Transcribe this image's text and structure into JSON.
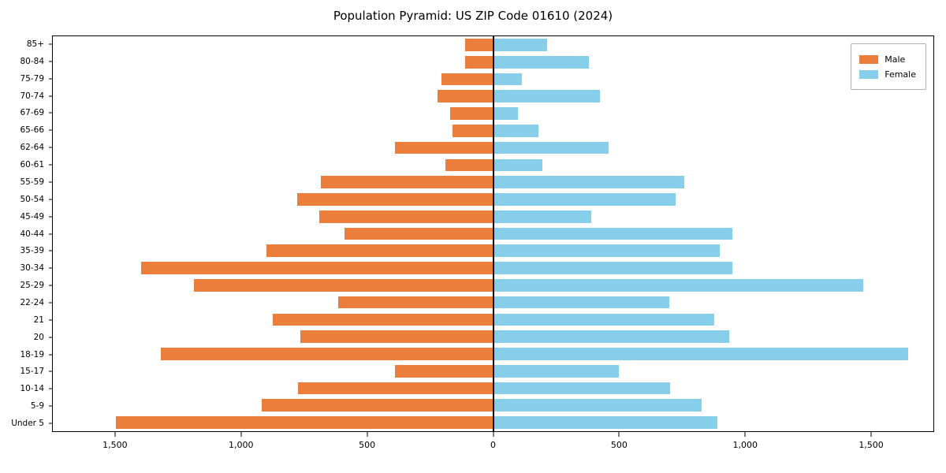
{
  "chart_data": {
    "type": "bar",
    "variant": "population-pyramid",
    "title": "Population Pyramid: US ZIP Code 01610 (2024)",
    "grid": false,
    "categories_top_to_bottom": [
      "85+",
      "80-84",
      "75-79",
      "70-74",
      "67-69",
      "65-66",
      "62-64",
      "60-61",
      "55-59",
      "50-54",
      "45-49",
      "40-44",
      "35-39",
      "30-34",
      "25-29",
      "22-24",
      "21",
      "20",
      "18-19",
      "15-17",
      "10-14",
      "5-9",
      "Under 5"
    ],
    "series": [
      {
        "name": "Male",
        "side": "left",
        "color": "#EC7E3B",
        "values": [
          110,
          110,
          205,
          220,
          170,
          160,
          390,
          190,
          685,
          780,
          690,
          590,
          900,
          1400,
          1190,
          615,
          875,
          765,
          1320,
          390,
          775,
          920,
          1500
        ]
      },
      {
        "name": "Female",
        "side": "right",
        "color": "#87CEEB",
        "values": [
          215,
          380,
          115,
          425,
          100,
          180,
          460,
          195,
          760,
          725,
          390,
          950,
          900,
          950,
          1470,
          700,
          880,
          940,
          1650,
          500,
          705,
          830,
          890
        ]
      }
    ],
    "x_axis": {
      "tick_values": [
        1500,
        1000,
        500,
        0,
        500,
        1000,
        1500
      ],
      "tick_labels": [
        "1,500",
        "1,000",
        "500",
        "0",
        "500",
        "1,000",
        "1,500"
      ],
      "max_per_side": 1750
    },
    "legend": {
      "position": "top-right",
      "entries": [
        {
          "label": "Male",
          "color": "#EC7E3B"
        },
        {
          "label": "Female",
          "color": "#87CEEB"
        }
      ]
    }
  }
}
